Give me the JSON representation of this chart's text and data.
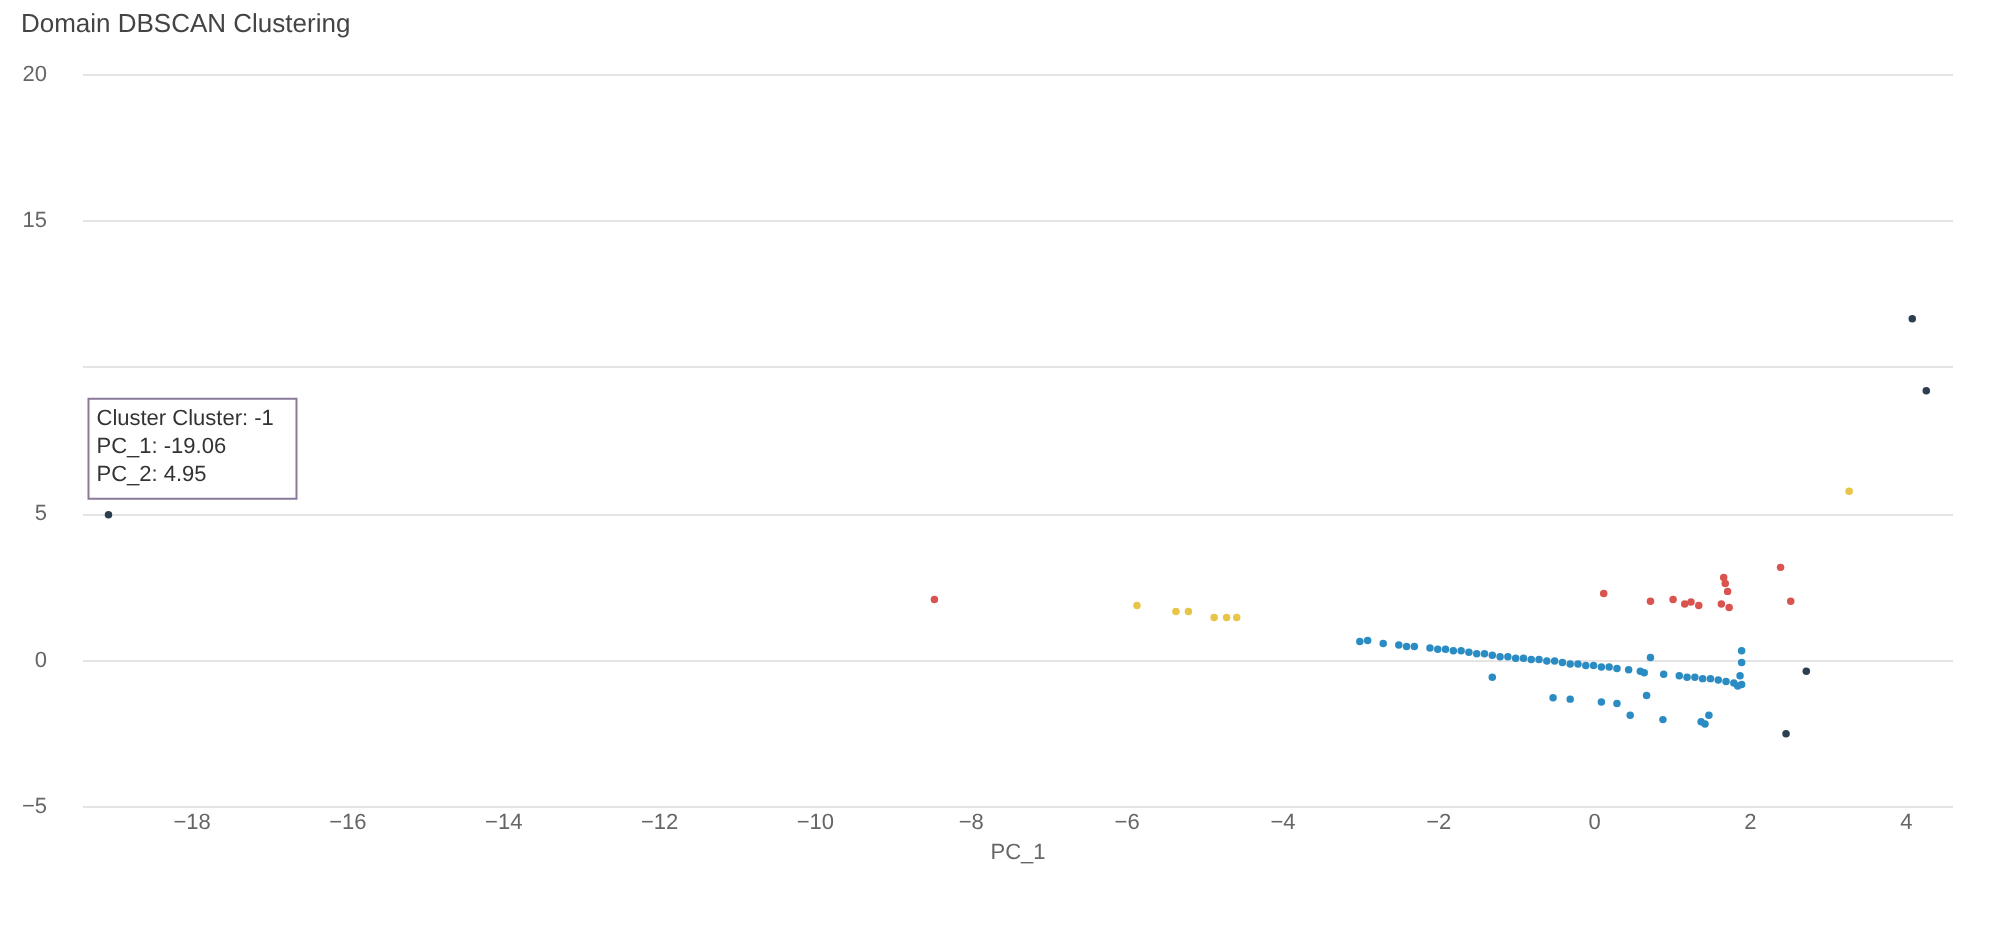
{
  "chart_data": {
    "type": "scatter",
    "title": "Domain DBSCAN Clustering",
    "xlabel": "PC_1",
    "xlim": [
      -19.4,
      4.6
    ],
    "ylim": [
      -5,
      20
    ],
    "xticks": [
      -18,
      -16,
      -14,
      -12,
      -10,
      -8,
      -6,
      -4,
      -2,
      0,
      2,
      4
    ],
    "yticks": [
      -5,
      0,
      5,
      {
        "value": 10,
        "label": null
      },
      15,
      20
    ],
    "grid": "y",
    "marker": "circle",
    "annotations": [
      {
        "text": "Cluster Cluster: -1\nPC_1: -19.06\nPC_2: 4.95",
        "x": -19.06,
        "y": 4.95
      }
    ],
    "series": [
      {
        "color": "#2d3e50",
        "x": [
          -19.06,
          4.09,
          4.27,
          2.47,
          2.73
        ],
        "values": [
          4.95,
          11.64,
          9.18,
          -2.53,
          -0.4
        ]
      },
      {
        "color": "#e8c547",
        "x": [
          3.28,
          -5.86,
          -5.36,
          -5.2,
          -4.87,
          -4.71,
          -4.58
        ],
        "values": [
          5.75,
          1.85,
          1.64,
          1.64,
          1.44,
          1.44,
          1.44
        ]
      },
      {
        "color": "#d9534f",
        "x": [
          -8.46,
          0.13,
          0.73,
          1.02,
          1.17,
          1.25,
          1.35,
          1.64,
          1.67,
          1.69,
          1.72,
          1.74,
          2.4,
          2.53
        ],
        "values": [
          2.05,
          2.26,
          1.99,
          2.05,
          1.9,
          1.97,
          1.85,
          1.9,
          2.8,
          2.6,
          2.33,
          1.78,
          3.15,
          1.99
        ]
      },
      {
        "color": "#2b8cc4",
        "x": [
          -3.0,
          -2.9,
          -2.7,
          -2.5,
          -2.4,
          -2.3,
          -2.1,
          -2.0,
          -1.9,
          -1.8,
          -1.7,
          -1.6,
          -1.5,
          -1.4,
          -1.3,
          -1.2,
          -1.1,
          -1.0,
          -0.9,
          -0.8,
          -0.7,
          -0.6,
          -0.5,
          -0.4,
          -0.3,
          -0.2,
          -0.1,
          0.0,
          0.1,
          0.2,
          0.3,
          0.45,
          0.6,
          0.65,
          0.9,
          1.1,
          1.2,
          1.3,
          1.4,
          1.5,
          1.6,
          1.7,
          1.8,
          1.85,
          1.88,
          1.9,
          1.9,
          1.9,
          -1.3,
          0.73,
          -0.52,
          -0.3,
          0.1,
          0.3,
          0.68,
          0.47,
          0.89,
          1.38,
          1.48,
          1.43
        ],
        "values": [
          0.62,
          0.65,
          0.55,
          0.5,
          0.45,
          0.45,
          0.4,
          0.35,
          0.35,
          0.3,
          0.3,
          0.25,
          0.2,
          0.2,
          0.15,
          0.1,
          0.1,
          0.05,
          0.05,
          0.0,
          0.0,
          -0.05,
          -0.05,
          -0.1,
          -0.15,
          -0.15,
          -0.2,
          -0.2,
          -0.25,
          -0.25,
          -0.3,
          -0.35,
          -0.4,
          -0.45,
          -0.5,
          -0.55,
          -0.6,
          -0.6,
          -0.65,
          -0.65,
          -0.7,
          -0.75,
          -0.8,
          -0.9,
          -0.55,
          0.3,
          -0.1,
          -0.85,
          -0.6,
          0.07,
          -1.3,
          -1.35,
          -1.45,
          -1.5,
          -1.23,
          -1.9,
          -2.05,
          -2.12,
          -1.9,
          -2.2
        ]
      }
    ]
  }
}
